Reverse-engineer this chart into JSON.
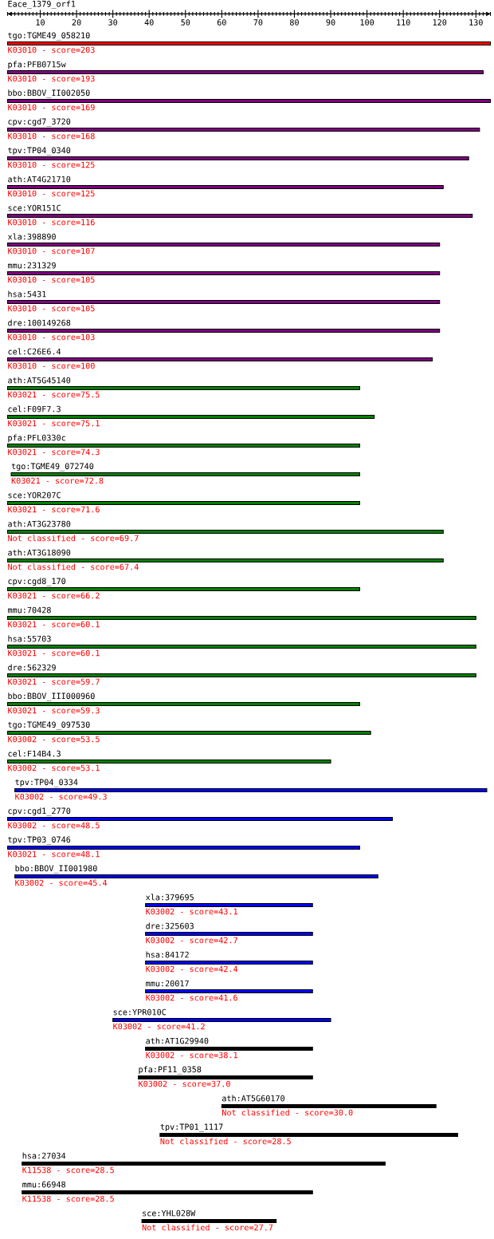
{
  "chart_data": {
    "type": "bar",
    "orientation": "horizontal",
    "xlabel": "Eace_1379_orf1",
    "categories": [
      "tgo:TGME49_058210",
      "pfa:PFB0715w",
      "bbo:BBOV_II002050",
      "cpv:cgd7_3720",
      "tpv:TP04_0340",
      "ath:AT4G21710",
      "sce:YOR151C",
      "xla:398890",
      "mmu:231329",
      "hsa:5431",
      "dre:100149268",
      "cel:C26E6.4",
      "ath:AT5G45140",
      "cel:F09F7.3",
      "pfa:PFL0330c",
      "tgo:TGME49_072740",
      "sce:YOR207C",
      "ath:AT3G23780",
      "ath:AT3G18090",
      "cpv:cgd8_170",
      "mmu:70428",
      "hsa:55703",
      "dre:562329",
      "bbo:BBOV_III000960",
      "tgo:TGME49_097530",
      "cel:F14B4.3",
      "tpv:TP04_0334",
      "cpv:cgd1_2770",
      "tpv:TP03_0746",
      "bbo:BBOV_II001980",
      "xla:379695",
      "dre:325603",
      "hsa:84172",
      "mmu:20017",
      "sce:YPR010C",
      "ath:AT1G29940",
      "pfa:PF11_0358",
      "ath:AT5G60170",
      "tpv:TP01_1117",
      "hsa:27034",
      "mmu:66948",
      "sce:YHL028W"
    ],
    "base": [
      1,
      1,
      1,
      1,
      1,
      1,
      1,
      1,
      1,
      1,
      1,
      1,
      1,
      1,
      1,
      2,
      1,
      1,
      1,
      1,
      1,
      1,
      1,
      1,
      1,
      1,
      3,
      1,
      1,
      3,
      39,
      39,
      39,
      39,
      30,
      39,
      37,
      60,
      43,
      5,
      5,
      38
    ],
    "values": [
      133,
      131,
      133,
      130,
      127,
      120,
      128,
      119,
      119,
      119,
      119,
      117,
      97,
      101,
      97,
      96,
      97,
      120,
      120,
      97,
      129,
      129,
      129,
      97,
      100,
      89,
      130,
      106,
      97,
      100,
      46,
      46,
      46,
      46,
      60,
      46,
      48,
      59,
      82,
      100,
      80,
      37
    ],
    "colors": [
      "#ff0000",
      "#800080",
      "#800080",
      "#800080",
      "#800080",
      "#800080",
      "#800080",
      "#800080",
      "#800080",
      "#800080",
      "#800080",
      "#800080",
      "#008000",
      "#008000",
      "#008000",
      "#008000",
      "#008000",
      "#008000",
      "#008000",
      "#008000",
      "#008000",
      "#008000",
      "#008000",
      "#008000",
      "#008000",
      "#008000",
      "#0000ff",
      "#0000ff",
      "#0000ff",
      "#0000ff",
      "#0000ff",
      "#0000ff",
      "#0000ff",
      "#0000ff",
      "#0000ff",
      "#000000",
      "#000000",
      "#000000",
      "#000000",
      "#000000",
      "#000000",
      "#000000"
    ],
    "xlim": [
      1,
      134
    ],
    "xticks": [
      10,
      20,
      30,
      40,
      50,
      60,
      70,
      80,
      90,
      100,
      110,
      120,
      130
    ],
    "annotations": [
      {
        "text": "K03010 - score=203",
        "x": 1,
        "y": "tgo:TGME49_058210"
      },
      {
        "text": "K03010 - score=193",
        "x": 1,
        "y": "pfa:PFB0715w"
      },
      {
        "text": "K03010 - score=169",
        "x": 1,
        "y": "bbo:BBOV_II002050"
      },
      {
        "text": "K03010 - score=168",
        "x": 1,
        "y": "cpv:cgd7_3720"
      },
      {
        "text": "K03010 - score=125",
        "x": 1,
        "y": "tpv:TP04_0340"
      },
      {
        "text": "K03010 - score=125",
        "x": 1,
        "y": "ath:AT4G21710"
      },
      {
        "text": "K03010 - score=116",
        "x": 1,
        "y": "sce:YOR151C"
      },
      {
        "text": "K03010 - score=107",
        "x": 1,
        "y": "xla:398890"
      },
      {
        "text": "K03010 - score=105",
        "x": 1,
        "y": "mmu:231329"
      },
      {
        "text": "K03010 - score=105",
        "x": 1,
        "y": "hsa:5431"
      },
      {
        "text": "K03010 - score=103",
        "x": 1,
        "y": "dre:100149268"
      },
      {
        "text": "K03010 - score=100",
        "x": 1,
        "y": "cel:C26E6.4"
      },
      {
        "text": "K03021 - score=75.5",
        "x": 1,
        "y": "ath:AT5G45140"
      },
      {
        "text": "K03021 - score=75.1",
        "x": 1,
        "y": "cel:F09F7.3"
      },
      {
        "text": "K03021 - score=74.3",
        "x": 1,
        "y": "pfa:PFL0330c"
      },
      {
        "text": "K03021 - score=72.8",
        "x": 2,
        "y": "tgo:TGME49_072740"
      },
      {
        "text": "K03021 - score=71.6",
        "x": 1,
        "y": "sce:YOR207C"
      },
      {
        "text": "Not classified - score=69.7",
        "x": 1,
        "y": "ath:AT3G23780"
      },
      {
        "text": "Not classified - score=67.4",
        "x": 1,
        "y": "ath:AT3G18090"
      },
      {
        "text": "K03021 - score=66.2",
        "x": 1,
        "y": "cpv:cgd8_170"
      },
      {
        "text": "K03021 - score=60.1",
        "x": 1,
        "y": "mmu:70428"
      },
      {
        "text": "K03021 - score=60.1",
        "x": 1,
        "y": "hsa:55703"
      },
      {
        "text": "K03021 - score=59.7",
        "x": 1,
        "y": "dre:562329"
      },
      {
        "text": "K03021 - score=59.3",
        "x": 1,
        "y": "bbo:BBOV_III000960"
      },
      {
        "text": "K03002 - score=53.5",
        "x": 1,
        "y": "tgo:TGME49_097530"
      },
      {
        "text": "K03002 - score=53.1",
        "x": 1,
        "y": "cel:F14B4.3"
      },
      {
        "text": "K03002 - score=49.3",
        "x": 3,
        "y": "tpv:TP04_0334"
      },
      {
        "text": "K03002 - score=48.5",
        "x": 1,
        "y": "cpv:cgd1_2770"
      },
      {
        "text": "K03021 - score=48.1",
        "x": 1,
        "y": "tpv:TP03_0746"
      },
      {
        "text": "K03002 - score=45.4",
        "x": 3,
        "y": "bbo:BBOV_II001980"
      },
      {
        "text": "K03002 - score=43.1",
        "x": 39,
        "y": "xla:379695"
      },
      {
        "text": "K03002 - score=42.7",
        "x": 39,
        "y": "dre:325603"
      },
      {
        "text": "K03002 - score=42.4",
        "x": 39,
        "y": "hsa:84172"
      },
      {
        "text": "K03002 - score=41.6",
        "x": 39,
        "y": "mmu:20017"
      },
      {
        "text": "K03002 - score=41.2",
        "x": 30,
        "y": "sce:YPR010C"
      },
      {
        "text": "K03002 - score=38.1",
        "x": 39,
        "y": "ath:AT1G29940"
      },
      {
        "text": "K03002 - score=37.0",
        "x": 37,
        "y": "pfa:PF11_0358"
      },
      {
        "text": "Not classified - score=30.0",
        "x": 60,
        "y": "ath:AT5G60170"
      },
      {
        "text": "Not classified - score=28.5",
        "x": 43,
        "y": "tpv:TP01_1117"
      },
      {
        "text": "K11538 - score=28.5",
        "x": 5,
        "y": "hsa:27034"
      },
      {
        "text": "K11538 - score=28.5",
        "x": 5,
        "y": "mmu:66948"
      },
      {
        "text": "Not classified - score=27.7",
        "x": 38,
        "y": "sce:YHL028W"
      }
    ]
  }
}
